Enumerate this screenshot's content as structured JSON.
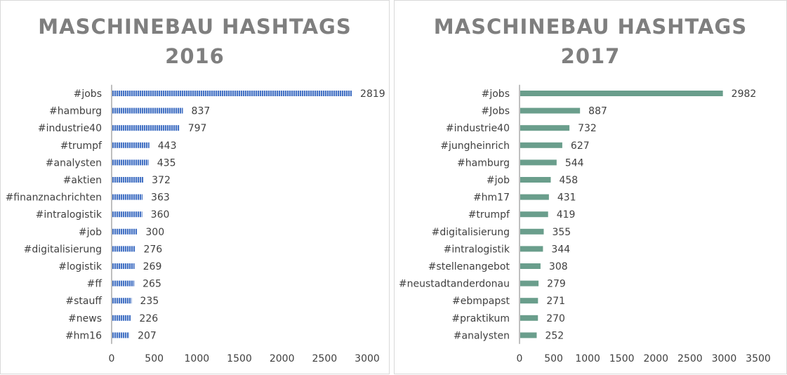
{
  "colors": {
    "left_bar": "#4472c4",
    "right_bar": "#6a9e8c",
    "axis": "#bfbfbf",
    "title": "#7f7f7f"
  },
  "chart_data": [
    {
      "type": "bar",
      "orientation": "horizontal",
      "title_line1": "MASCHINEBAU HASHTAGS",
      "title_line2": "2016",
      "categories": [
        "#jobs",
        "#hamburg",
        "#industrie40",
        "#trumpf",
        "#analysten",
        "#aktien",
        "#finanznachrichten",
        "#intralogistik",
        "#job",
        "#digitalisierung",
        "#logistik",
        "#ff",
        "#stauff",
        "#news",
        "#hm16"
      ],
      "values": [
        2819,
        837,
        797,
        443,
        435,
        372,
        363,
        360,
        300,
        276,
        269,
        265,
        235,
        226,
        207
      ],
      "xlim": [
        0,
        3000
      ],
      "xticks": [
        "0",
        "500",
        "1000",
        "1500",
        "2000",
        "2500",
        "3000"
      ],
      "bar_pattern": "vertical-stripes"
    },
    {
      "type": "bar",
      "orientation": "horizontal",
      "title_line1": "MASCHINEBAU HASHTAGS",
      "title_line2": "2017",
      "categories": [
        "#jobs",
        "#Jobs",
        "#industrie40",
        "#jungheinrich",
        "#hamburg",
        "#job",
        "#hm17",
        "#trumpf",
        "#digitalisierung",
        "#intralogistik",
        "#stellenangebot",
        "#neustadtanderdonau",
        "#ebmpapst",
        "#praktikum",
        "#analysten"
      ],
      "values": [
        2982,
        887,
        732,
        627,
        544,
        458,
        431,
        419,
        355,
        344,
        308,
        279,
        271,
        270,
        252
      ],
      "xlim": [
        0,
        3500
      ],
      "xticks": [
        "0",
        "500",
        "1000",
        "1500",
        "2000",
        "2500",
        "3000",
        "3500"
      ],
      "bar_pattern": "solid"
    }
  ]
}
